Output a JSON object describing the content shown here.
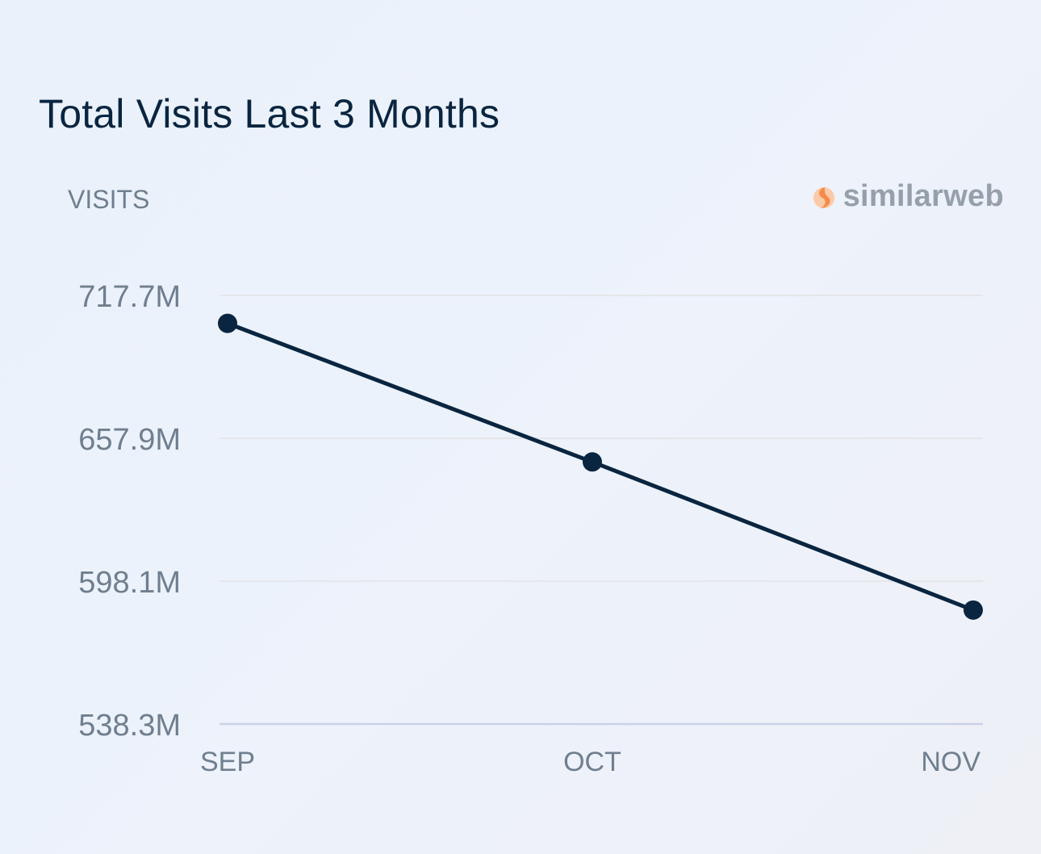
{
  "chart_data": {
    "type": "line",
    "title": "Total Visits Last 3 Months",
    "ylabel": "VISITS",
    "xlabel": "",
    "categories": [
      "SEP",
      "OCT",
      "NOV"
    ],
    "series": [
      {
        "values": [
          706.0,
          648.0,
          586.0
        ]
      }
    ],
    "y_ticks": [
      {
        "value": 717.7,
        "label": "717.7M"
      },
      {
        "value": 657.9,
        "label": "657.9M"
      },
      {
        "value": 598.1,
        "label": "598.1M"
      },
      {
        "value": 538.3,
        "label": "538.3M"
      }
    ],
    "ylim": [
      538.3,
      717.7
    ],
    "grid": true,
    "colors": {
      "line": "#092540",
      "grid": "#e6e6ea",
      "baseline": "#c9d3e6",
      "tick_text": "#6f7f8f",
      "brand_orange": "#f7a978",
      "brand_orange_light": "#fbcaa8"
    }
  },
  "brand": {
    "name": "similarweb",
    "icon": "similarweb-logo-icon"
  }
}
